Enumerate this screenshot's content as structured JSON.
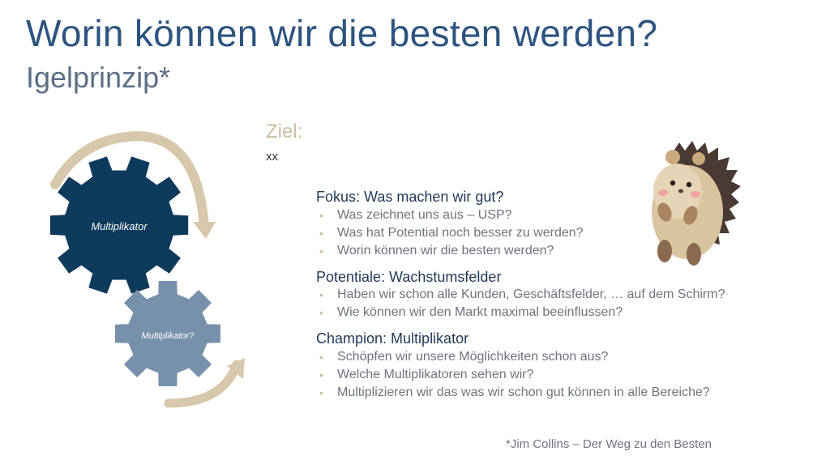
{
  "slide": {
    "title": "Worin können wir die besten werden?",
    "subtitle": "Igelprinzip*"
  },
  "goal": {
    "label": "Ziel:",
    "value": "xx"
  },
  "gears": {
    "large_label": "Multiplikator",
    "small_label": "Multiplikator?",
    "large_color": "#0e3a5c",
    "small_color": "#7891ab",
    "arrow_color": "#d7c8ac"
  },
  "sections": [
    {
      "heading": "Fokus: Was machen wir gut?",
      "bullets": [
        "Was zeichnet uns aus – USP?",
        "Was hat Potential noch besser zu werden?",
        "Worin können wir die besten werden?"
      ]
    },
    {
      "heading": "Potentiale: Wachstumsfelder",
      "bullets": [
        "Haben wir schon alle Kunden, Geschäftsfelder, … auf dem Schirm?",
        "Wie können wir den Markt maximal beeinflussen?"
      ]
    },
    {
      "heading": "Champion: Multiplikator",
      "bullets": [
        "Schöpfen wir unsere Möglichkeiten schon aus?",
        "Welche Multiplikatoren sehen wir?",
        "Multiplizieren wir das was wir schon gut können in alle Bereiche?"
      ]
    }
  ],
  "footnote": "*Jim Collins – Der Weg zu den Besten"
}
